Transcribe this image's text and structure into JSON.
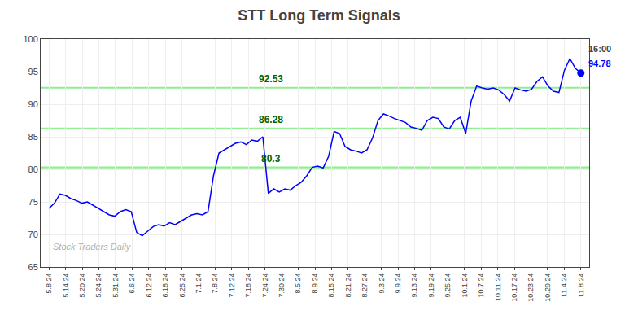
{
  "chart_data": {
    "type": "line",
    "title": "STT Long Term Signals",
    "x": [
      0,
      0.3299,
      0.6598,
      0.9897,
      1.3196,
      1.6495,
      1.9794,
      2.3093,
      2.6392,
      2.9691,
      3.299,
      3.6289,
      3.9588,
      4.2887,
      4.6186,
      4.9485,
      5.2784,
      5.6082,
      5.9381,
      6.268,
      6.5979,
      6.9278,
      7.2577,
      7.5876,
      7.9175,
      8.2474,
      8.5773,
      8.9072,
      9.2371,
      9.567,
      9.8969,
      10.2268,
      10.5567,
      10.8866,
      11.2165,
      11.5464,
      11.8763,
      12.2062,
      12.5361,
      12.866,
      13.1959,
      13.5258,
      13.8557,
      14.1856,
      14.5155,
      14.8454,
      15.1753,
      15.5052,
      15.8351,
      16.1649,
      16.4948,
      16.8247,
      17.1546,
      17.4845,
      17.8144,
      18.1443,
      18.4742,
      18.8041,
      19.134,
      19.4639,
      19.7938,
      20.1237,
      20.4536,
      20.7835,
      21.1134,
      21.4433,
      21.7732,
      22.1031,
      22.433,
      22.7629,
      23.0928,
      23.4227,
      23.7526,
      24.0825,
      24.4124,
      24.7423,
      25.0722,
      25.4021,
      25.732,
      26.0619,
      26.3918,
      26.7216,
      27.0515,
      27.3814,
      27.7113,
      28.0412,
      28.3711,
      28.701,
      29.0309,
      29.3608,
      29.6907,
      30.0206,
      30.3505,
      30.6804,
      31.0103,
      31.3402,
      31.6701,
      32
    ],
    "xlim": [
      -0.5,
      32.5
    ],
    "xticks": [
      {
        "value": 0,
        "label": "5.8.24"
      },
      {
        "value": 1,
        "label": "5.14.24"
      },
      {
        "value": 2,
        "label": "5.20.24"
      },
      {
        "value": 3,
        "label": "5.24.24"
      },
      {
        "value": 4,
        "label": "5.31.24"
      },
      {
        "value": 5,
        "label": "6.6.24"
      },
      {
        "value": 6,
        "label": "6.12.24"
      },
      {
        "value": 7,
        "label": "6.18.24"
      },
      {
        "value": 8,
        "label": "6.25.24"
      },
      {
        "value": 9,
        "label": "7.1.24"
      },
      {
        "value": 10,
        "label": "7.8.24"
      },
      {
        "value": 11,
        "label": "7.12.24"
      },
      {
        "value": 12,
        "label": "7.18.24"
      },
      {
        "value": 13,
        "label": "7.24.24"
      },
      {
        "value": 14,
        "label": "7.30.24"
      },
      {
        "value": 15,
        "label": "8.5.24"
      },
      {
        "value": 16,
        "label": "8.9.24"
      },
      {
        "value": 17,
        "label": "8.15.24"
      },
      {
        "value": 18,
        "label": "8.21.24"
      },
      {
        "value": 19,
        "label": "8.27.24"
      },
      {
        "value": 20,
        "label": "9.3.24"
      },
      {
        "value": 21,
        "label": "9.9.24"
      },
      {
        "value": 22,
        "label": "9.13.24"
      },
      {
        "value": 23,
        "label": "9.19.24"
      },
      {
        "value": 24,
        "label": "9.25.24"
      },
      {
        "value": 25,
        "label": "10.1.24"
      },
      {
        "value": 26,
        "label": "10.7.24"
      },
      {
        "value": 27,
        "label": "10.11.24"
      },
      {
        "value": 28,
        "label": "10.17.24"
      },
      {
        "value": 29,
        "label": "10.23.24"
      },
      {
        "value": 30,
        "label": "10.29.24"
      },
      {
        "value": 31,
        "label": "11.4.24"
      },
      {
        "value": 32,
        "label": "11.8.24"
      }
    ],
    "series": [
      {
        "color": "blue",
        "marker": "circle",
        "values": [
          74.0,
          74.8,
          76.2,
          76.0,
          75.5,
          75.2,
          74.8,
          75.0,
          74.5,
          74.0,
          73.5,
          73.0,
          72.8,
          73.5,
          73.8,
          73.5,
          70.3,
          69.8,
          70.5,
          71.2,
          71.5,
          71.3,
          71.8,
          71.5,
          72.0,
          72.5,
          73.0,
          73.2,
          73.0,
          73.5,
          79.0,
          82.5,
          83.0,
          83.5,
          84.0,
          84.2,
          83.8,
          84.5,
          84.3,
          85.0,
          76.3,
          77.0,
          76.5,
          77.0,
          76.8,
          77.5,
          78.0,
          79.0,
          80.3,
          80.5,
          80.2,
          82.0,
          85.8,
          85.5,
          83.5,
          83.0,
          82.8,
          82.5,
          83.0,
          84.8,
          87.5,
          88.5,
          88.2,
          87.8,
          87.5,
          87.2,
          86.5,
          86.3,
          86.0,
          87.5,
          88.0,
          87.8,
          86.5,
          86.2,
          87.5,
          88.0,
          85.5,
          90.5,
          92.8,
          92.5,
          92.3,
          92.5,
          92.2,
          91.5,
          90.5,
          92.5,
          92.2,
          92.0,
          92.3,
          93.5,
          94.2,
          92.8,
          92.0,
          91.8,
          95.2,
          97.0,
          95.5,
          94.78
        ]
      }
    ],
    "ylim": [
      65,
      100
    ],
    "yticks": [
      65,
      70,
      75,
      80,
      85,
      90,
      95,
      100
    ],
    "grid": true,
    "hlines": [
      {
        "value": 80.3,
        "label": "80.3",
        "color": "#90EE90"
      },
      {
        "value": 86.28,
        "label": "86.28",
        "color": "#90EE90"
      },
      {
        "value": 92.53,
        "label": "92.53",
        "color": "#90EE90"
      }
    ],
    "annotations": [
      {
        "text": "16:00",
        "x": 32,
        "y": 94.78
      },
      {
        "text": "94.78",
        "x": 32,
        "y": 94.78,
        "color": "blue"
      },
      {
        "text": "Stock Traders Daily"
      }
    ]
  }
}
